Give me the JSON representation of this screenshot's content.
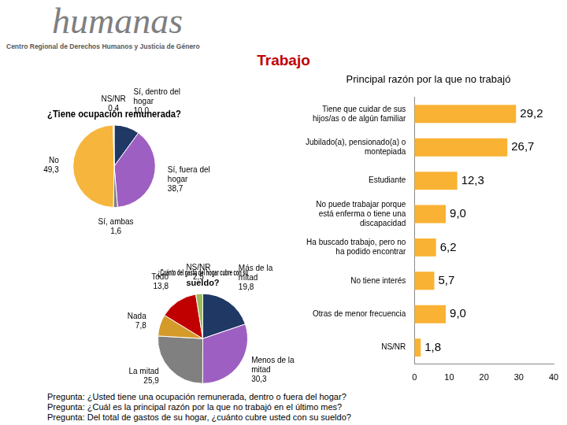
{
  "header": {
    "organization": "humanas",
    "organization_subtitle": "Centro Regional de Derechos Humanos y Justicia de Género",
    "title": "Trabajo"
  },
  "chart_data": [
    {
      "type": "pie",
      "title": "¿Tiene ocupación remunerada?",
      "categories": [
        "Sí, dentro del hogar",
        "Sí, fuera del hogar",
        "Sí, ambas",
        "No",
        "NS/NR"
      ],
      "values": [
        10.0,
        38.7,
        1.6,
        49.3,
        0.4
      ],
      "value_labels": [
        "10,0",
        "38,7",
        "1,6",
        "49,3",
        "0,4"
      ],
      "colors": [
        "#1f3864",
        "#9e5fc2",
        "#7f7f7f",
        "#f6b53d",
        "#d9d9d9"
      ],
      "data_labels": true
    },
    {
      "type": "pie",
      "title": "¿Cuánto del gasto del hogar cubre con su sueldo?",
      "categories": [
        "Más de la mitad",
        "Menos de la mitad",
        "La mitad",
        "Nada",
        "Todo",
        "NS/NR"
      ],
      "values": [
        19.8,
        30.3,
        25.9,
        7.8,
        13.8,
        2.5
      ],
      "value_labels": [
        "19,8",
        "30,3",
        "25,9",
        "7,8",
        "13,8",
        "2,5"
      ],
      "colors": [
        "#1f3864",
        "#9e5fc2",
        "#808080",
        "#d49a2a",
        "#c00000",
        "#9bbb59"
      ],
      "data_labels": true
    },
    {
      "type": "bar",
      "title": "Principal razón por la que no trabajó",
      "orientation": "horizontal",
      "categories": [
        "Tiene que cuidar de sus hijos/as o de algún familiar",
        "Jubilado(a), pensionado(a) o montepiada",
        "Estudiante",
        "No puede trabajar porque está enferma o tiene una discapacidad",
        "Ha buscado trabajo, pero no ha podido encontrar",
        "No tiene interés",
        "Otras de menor frecuencia",
        "NS/NR"
      ],
      "values": [
        29.2,
        26.7,
        12.3,
        9.0,
        6.2,
        5.7,
        9.0,
        1.8
      ],
      "value_labels": [
        "29,2",
        "26,7",
        "12,3",
        "9,0",
        "6,2",
        "5,7",
        "9,0",
        "1,8"
      ],
      "color": "#f9b233",
      "xlim": [
        0,
        40
      ],
      "xticks": [
        0,
        10,
        20,
        30,
        40
      ],
      "grid": false,
      "data_labels": true
    }
  ],
  "notes": [
    "Pregunta: ¿Usted tiene una ocupación remunerada, dentro o fuera del hogar?",
    "Pregunta: ¿Cuál es la principal razón por la que no trabajó en el último mes?",
    "Pregunta: Del total de gastos de su hogar, ¿cuánto cubre usted con su sueldo?"
  ]
}
